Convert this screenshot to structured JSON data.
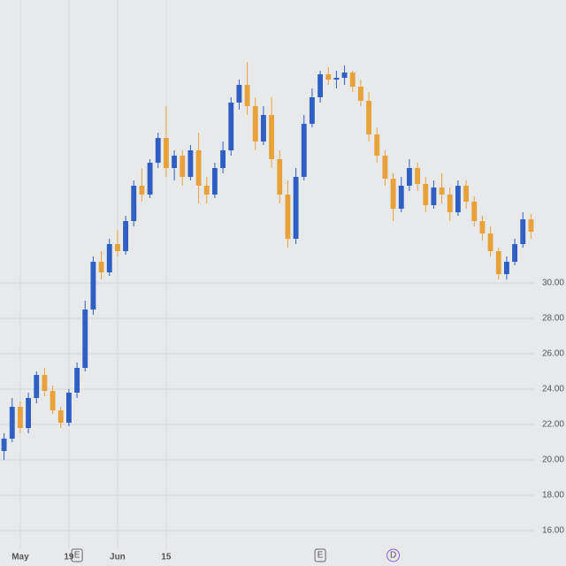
{
  "chart_data": {
    "type": "candlestick",
    "categories": [
      null,
      null,
      "May",
      null,
      null,
      null,
      null,
      null,
      "19",
      null,
      null,
      null,
      null,
      null,
      "Jun",
      null,
      null,
      null,
      null,
      null,
      "15",
      null,
      null,
      null,
      null,
      null,
      null,
      null,
      null,
      null,
      null,
      null,
      null,
      null,
      null,
      null,
      null,
      null,
      null,
      null,
      null,
      null,
      null,
      null,
      null,
      null,
      null,
      null,
      null,
      null,
      null,
      null,
      null,
      null,
      null,
      null,
      null,
      null,
      null,
      null,
      null,
      null,
      null,
      null,
      null,
      null
    ],
    "open": [
      20.5,
      21.2,
      23,
      21.8,
      23.5,
      24.8,
      23.9,
      22.8,
      22.1,
      23.8,
      25.2,
      28.5,
      31.2,
      30.6,
      32.2,
      31.8,
      33.5,
      35.5,
      35,
      36.8,
      38.2,
      36.5,
      37.2,
      36,
      37.5,
      35.5,
      35,
      36.5,
      37.5,
      40.2,
      41.2,
      40,
      38,
      39.5,
      37,
      35,
      32.5,
      36,
      39,
      40.5,
      41.8,
      41.5,
      41.6,
      41.9,
      41.1,
      40.3,
      38.4,
      37.2,
      35.9,
      34.2,
      35.5,
      36.5,
      35.6,
      34.4,
      35.4,
      35,
      34,
      35.5,
      34.6,
      33.5,
      32.8,
      31.8,
      30.5,
      31.2,
      32.2,
      33.6
    ],
    "high": [
      21.5,
      23.5,
      23.3,
      23.8,
      25,
      25.2,
      24.2,
      23,
      24,
      25.5,
      29,
      31.5,
      31.8,
      32.5,
      33,
      33.8,
      35.8,
      36.5,
      37,
      38.5,
      40,
      37.5,
      37.5,
      37.8,
      38.5,
      36,
      36.8,
      38,
      40.5,
      41.5,
      42.5,
      40.5,
      40,
      40.5,
      37.5,
      35.8,
      36.5,
      39.5,
      41,
      42,
      42.2,
      42,
      42.3,
      42,
      41.5,
      40.8,
      38.8,
      37.5,
      36.2,
      36,
      37,
      36.8,
      36,
      35.8,
      36.2,
      35.4,
      35.8,
      35.8,
      34.9,
      33.8,
      33.2,
      32,
      31.5,
      32.5,
      34,
      33.9
    ],
    "low": [
      20,
      21,
      21.5,
      21.5,
      23.2,
      23.6,
      22.6,
      21.8,
      21.9,
      23.5,
      25,
      28.2,
      30.2,
      30.4,
      31.5,
      31.6,
      33.2,
      34.6,
      34.8,
      36.5,
      36,
      35.8,
      35.5,
      35.8,
      34.5,
      34.5,
      34.8,
      36.2,
      37.2,
      39.8,
      39.5,
      37.5,
      37.8,
      36.5,
      34.5,
      32,
      32.2,
      35.8,
      38.8,
      40.2,
      41.2,
      41,
      41.2,
      40.8,
      40,
      38,
      36.8,
      35.5,
      33.5,
      34,
      35.2,
      35.2,
      34,
      34.2,
      34.5,
      33.5,
      33.8,
      34.2,
      33.2,
      32.4,
      31.5,
      30.2,
      30.2,
      31,
      32,
      32.5
    ],
    "close": [
      21.2,
      23,
      21.8,
      23.5,
      24.8,
      23.9,
      22.8,
      22.1,
      23.8,
      25.2,
      28.5,
      31.2,
      30.6,
      32.2,
      31.8,
      33.5,
      35.5,
      35,
      36.8,
      38.2,
      36.5,
      37.2,
      36,
      37.5,
      35.5,
      35,
      36.5,
      37.5,
      40.2,
      41.2,
      40,
      38,
      39.5,
      37,
      35,
      32.5,
      36,
      39,
      40.5,
      41.8,
      41.5,
      41.6,
      41.9,
      41.1,
      40.3,
      38.4,
      37.2,
      35.9,
      34.2,
      35.5,
      36.5,
      35.6,
      34.4,
      35.4,
      35,
      34,
      35.5,
      34.6,
      33.5,
      32.8,
      31.8,
      30.5,
      31.2,
      32.2,
      33.6,
      32.9
    ],
    "up_color": "#2f5fc4",
    "down_color": "#e9a23b",
    "ylim": [
      14,
      46
    ],
    "yticks": [
      {
        "value": 16,
        "label": "16.00"
      },
      {
        "value": 18,
        "label": "18.00"
      },
      {
        "value": 20,
        "label": "20.00"
      },
      {
        "value": 22,
        "label": "22.00"
      },
      {
        "value": 24,
        "label": "24.00"
      },
      {
        "value": 26,
        "label": "26.00"
      },
      {
        "value": 28,
        "label": "28.00"
      },
      {
        "value": 30,
        "label": "30.00"
      }
    ],
    "grid": true,
    "events": [
      {
        "at": 9,
        "label": "E"
      },
      {
        "at": 39,
        "label": "E"
      },
      {
        "at": 48,
        "label": "D"
      }
    ]
  }
}
